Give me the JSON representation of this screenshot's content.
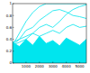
{
  "chart_data": {
    "type": "line",
    "color": "#00e5ee",
    "x": [
      0,
      500,
      1000,
      1500,
      2000,
      2500,
      3000,
      3500,
      4000,
      4500,
      5000,
      5500
    ],
    "series": [
      {
        "type": "area",
        "values": [
          0.35,
          0.28,
          0.4,
          0.3,
          0.45,
          0.33,
          0.38,
          0.29,
          0.42,
          0.36,
          0.3,
          0.4
        ]
      },
      {
        "values": [
          0.3,
          0.5,
          0.7,
          0.85,
          0.95,
          1,
          1,
          1,
          1,
          1,
          1,
          1
        ]
      },
      {
        "values": [
          0.3,
          0.4,
          0.55,
          0.6,
          0.72,
          0.8,
          0.88,
          0.9,
          0.86,
          0.8,
          0.78,
          0.75
        ]
      },
      {
        "values": [
          0.3,
          0.35,
          0.4,
          0.5,
          0.6,
          0.65,
          0.6,
          0.7,
          0.82,
          0.9,
          0.95,
          0.98
        ]
      },
      {
        "values": [
          0.35,
          0.4,
          0.45,
          0.5,
          0.45,
          0.5,
          0.55,
          0.5,
          0.6,
          0.65,
          0.6,
          0.62
        ]
      }
    ],
    "xlim": [
      0,
      5500
    ],
    "xticks": [
      1000,
      2000,
      3000,
      4000,
      5000
    ],
    "ylim": [
      0,
      1
    ],
    "yticks": [
      0,
      0.2,
      0.4,
      0.6,
      0.8,
      1
    ],
    "grid": false
  }
}
